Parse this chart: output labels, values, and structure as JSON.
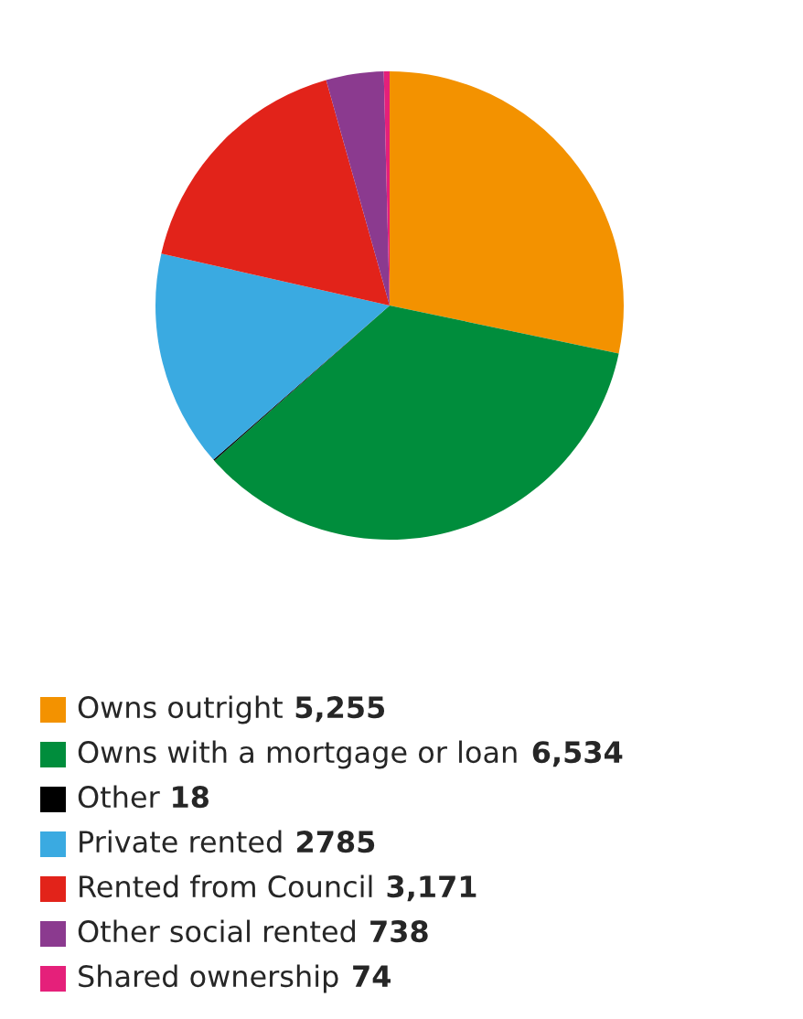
{
  "chart_data": {
    "type": "pie",
    "categories": [
      "Owns outright",
      "Owns with a mortgage or loan",
      "Other",
      "Private rented",
      "Rented from Council",
      "Other social rented",
      "Shared ownership"
    ],
    "values": [
      5255,
      6534,
      18,
      2785,
      3171,
      738,
      74
    ],
    "value_labels": [
      "5,255",
      "6,534",
      "18",
      "2785",
      "3,171",
      "738",
      "74"
    ],
    "colors": [
      "#f39200",
      "#008d3c",
      "#000000",
      "#3aaae1",
      "#e2231a",
      "#8b3a8f",
      "#e5207a"
    ],
    "legend": "bottom"
  }
}
